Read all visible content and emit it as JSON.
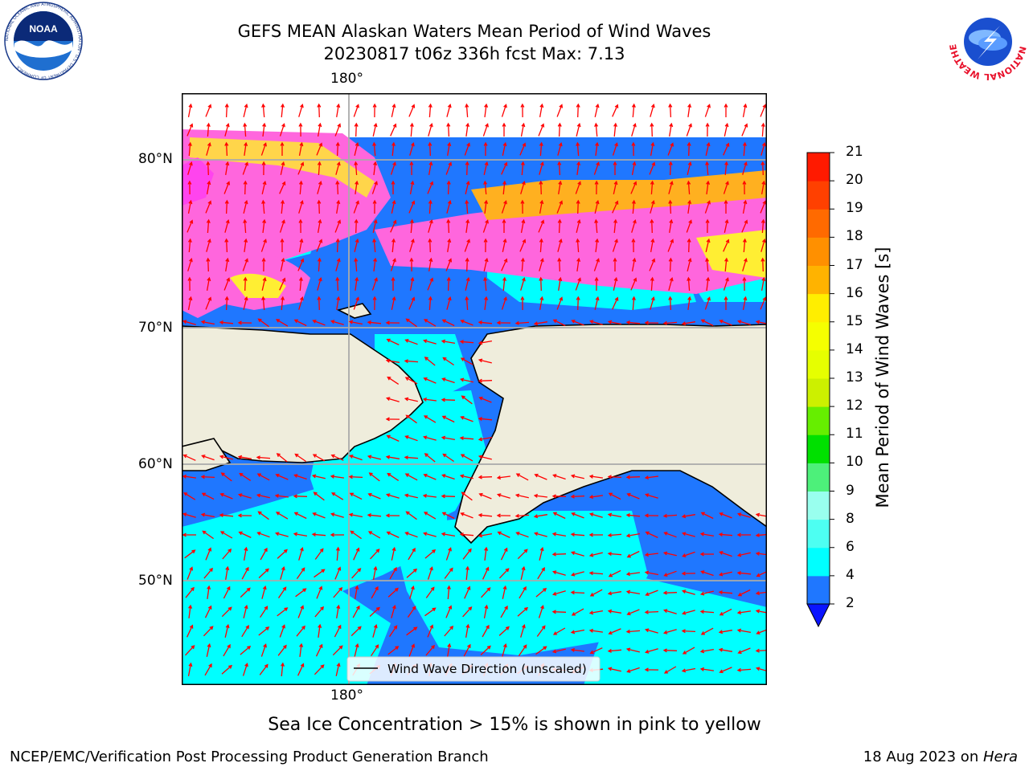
{
  "title": {
    "line1": "GEFS MEAN Alaskan Waters Mean Period of Wind Waves",
    "line2": "20230817 t06z 336h fcst   Max: 7.13"
  },
  "axes": {
    "top_lon_label": "180°",
    "bottom_lon_label": "180°",
    "lat_labels": [
      "80°N",
      "70°N",
      "60°N",
      "50°N"
    ]
  },
  "legend": {
    "label": "Wind Wave Direction (unscaled)"
  },
  "colorbar": {
    "label": "Mean Period of Wind Waves [s]",
    "ticks": [
      "21",
      "20",
      "19",
      "18",
      "17",
      "16",
      "15",
      "14",
      "13",
      "12",
      "11",
      "10",
      "9",
      "8",
      "6",
      "4",
      "2"
    ],
    "levels": [
      {
        "min": 2,
        "max": 4,
        "color": "#1f77ff"
      },
      {
        "min": 4,
        "max": 6,
        "color": "#00ffff"
      },
      {
        "min": 6,
        "max": 8,
        "color": "#4dfff2"
      },
      {
        "min": 8,
        "max": 9,
        "color": "#99ffee"
      },
      {
        "min": 9,
        "max": 10,
        "color": "#4df07a"
      },
      {
        "min": 10,
        "max": 11,
        "color": "#00e000"
      },
      {
        "min": 11,
        "max": 12,
        "color": "#66ee00"
      },
      {
        "min": 12,
        "max": 13,
        "color": "#ccf000"
      },
      {
        "min": 13,
        "max": 14,
        "color": "#e6ff00"
      },
      {
        "min": 14,
        "max": 15,
        "color": "#f5ff00"
      },
      {
        "min": 15,
        "max": 16,
        "color": "#ffee00"
      },
      {
        "min": 16,
        "max": 17,
        "color": "#ffb300"
      },
      {
        "min": 17,
        "max": 18,
        "color": "#ff9000"
      },
      {
        "min": 18,
        "max": 19,
        "color": "#ff6a00"
      },
      {
        "min": 19,
        "max": 20,
        "color": "#ff4000"
      },
      {
        "min": 20,
        "max": 21,
        "color": "#ff1a00"
      }
    ],
    "under_color": "#0a14ff"
  },
  "caption": "Sea Ice Concentration > 15% is shown in pink to yellow",
  "footer": {
    "left": "NCEP/EMC/Verification Post Processing Product Generation Branch",
    "right_prefix": "18 Aug 2023 on ",
    "right_host": "Hera"
  },
  "logos": {
    "noaa_text": "NOAA",
    "noaa_ring_text": "NATIONAL OCEANIC AND ATMOSPHERIC ADMINISTRATION · U.S. DEPARTMENT OF COMMERCE",
    "nws_ring_text": "NATIONAL WEATHER SERVICE"
  },
  "colors": {
    "land": "#efeddc",
    "ocean_low": "#1f77ff",
    "ocean_mid": "#00ffff",
    "ice_pink": "#ff66dd",
    "ice_yellow": "#ffee33",
    "arrow": "#ff0000",
    "grid": "#aaaaaa"
  }
}
